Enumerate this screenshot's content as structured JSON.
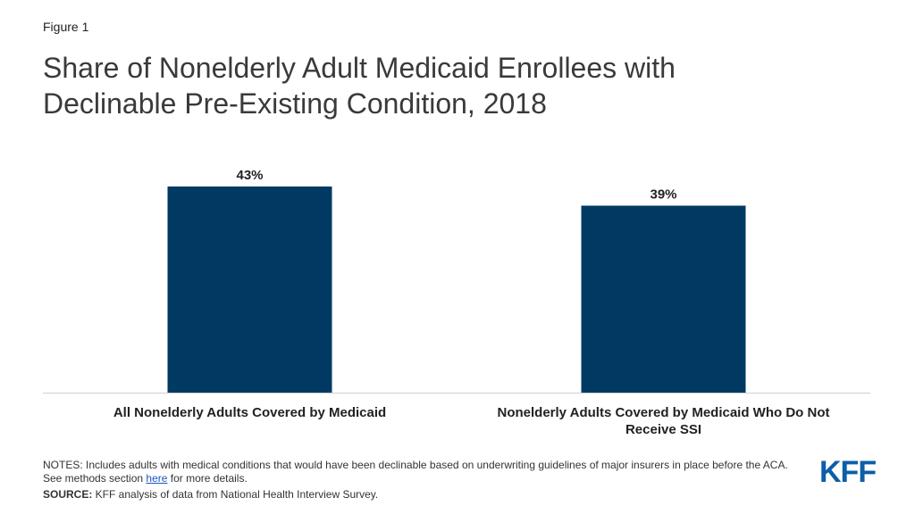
{
  "figure_label": "Figure 1",
  "title_line1": "Share of Nonelderly Adult Medicaid Enrollees with",
  "title_line2": "Declinable Pre-Existing Condition, 2018",
  "chart_data": {
    "type": "bar",
    "title": "Share of Nonelderly Adult Medicaid Enrollees with Declinable Pre-Existing Condition, 2018",
    "categories": [
      [
        "All Nonelderly Adults Covered by Medicaid"
      ],
      [
        "Nonelderly Adults Covered by Medicaid Who Do Not",
        "Receive SSI"
      ]
    ],
    "values": [
      43,
      39
    ],
    "value_labels": [
      "43%",
      "39%"
    ],
    "ylim": [
      0,
      43
    ],
    "grid": false,
    "bar_color": "#003A63"
  },
  "notes": {
    "before_link": "NOTES: Includes adults with medical conditions that would have been declinable based on underwriting guidelines of major insurers in place before the ACA. See methods section ",
    "link_text": "here",
    "after_link": " for more details."
  },
  "source": {
    "label": "SOURCE:",
    "text": " KFF analysis of data from National Health Interview Survey."
  },
  "logo": {
    "text": "KFF",
    "color": "#0D5EA8"
  }
}
